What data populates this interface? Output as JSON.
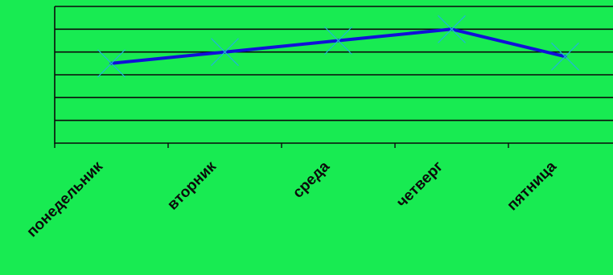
{
  "colors": {
    "background": "#18eb52",
    "gridline": "#0b0b0b",
    "series_line": "#1010d8",
    "marker": "#1fb7d6",
    "label_text": "#0b0b0b"
  },
  "chart_data": {
    "type": "line",
    "title": "",
    "xlabel": "",
    "ylabel": "",
    "categories": [
      "понедельник",
      "вторник",
      "среда",
      "четверг",
      "пятница"
    ],
    "series": [
      {
        "values": [
          3.5,
          4.0,
          4.5,
          5.0,
          3.8
        ],
        "marker": "x"
      }
    ],
    "ylim": [
      0,
      6
    ],
    "grid": true,
    "legend": "none",
    "y_tick_labels_shown": false
  }
}
